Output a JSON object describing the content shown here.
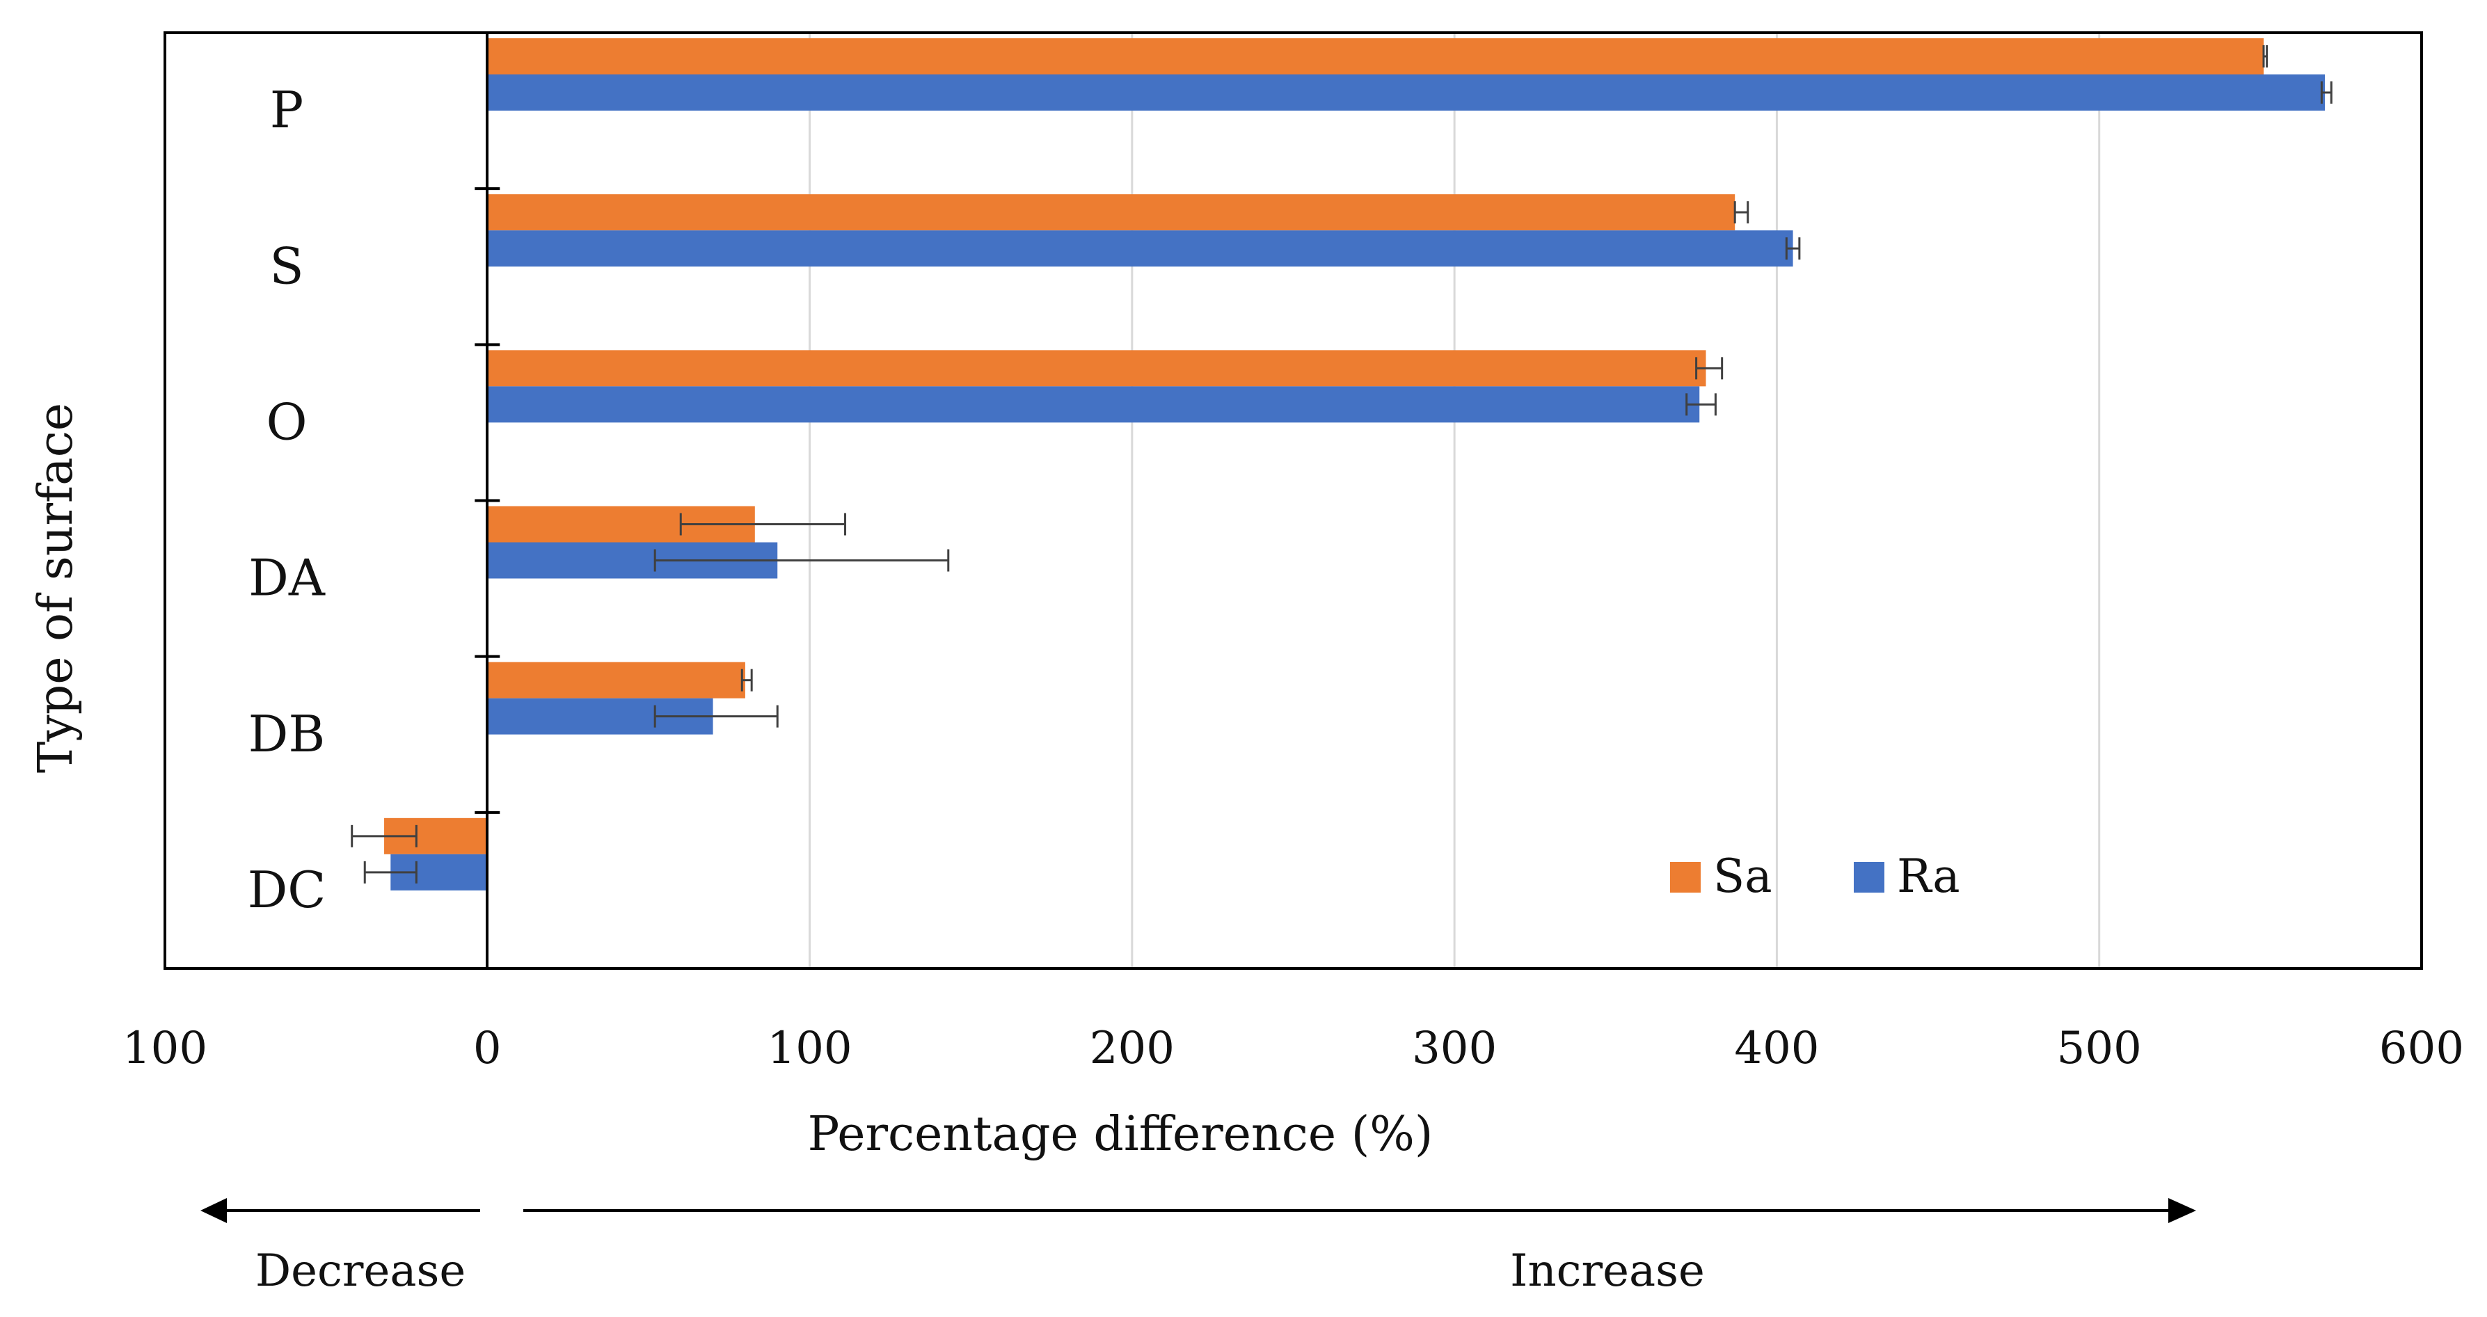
{
  "chart_data": {
    "type": "bar",
    "orientation": "horizontal",
    "title": "",
    "xlabel": "Percentage difference (%)",
    "ylabel": "Type of surface",
    "categories": [
      "P",
      "S",
      "O",
      "DA",
      "DB",
      "DC"
    ],
    "series": [
      {
        "name": "Sa",
        "color": "#ED7D31",
        "values": [
          551,
          387,
          378,
          83,
          80,
          -32
        ],
        "err_low": [
          551,
          387,
          375,
          60,
          79,
          -42
        ],
        "err_high": [
          552,
          391,
          383,
          111,
          82,
          -22
        ]
      },
      {
        "name": "Ra",
        "color": "#4472C4",
        "values": [
          570,
          405,
          376,
          90,
          70,
          -30
        ],
        "err_low": [
          569,
          403,
          372,
          52,
          52,
          -38
        ],
        "err_high": [
          572,
          407,
          381,
          143,
          90,
          -22
        ]
      }
    ],
    "xlim": [
      -100,
      600
    ],
    "xticks": [
      -100,
      0,
      100,
      200,
      300,
      400,
      500,
      600
    ],
    "xtick_labels": [
      "100",
      "0",
      "100",
      "200",
      "300",
      "400",
      "500",
      "600"
    ],
    "grid": "vertical",
    "legend": "bottom-right",
    "annotations": {
      "decrease": "Decrease",
      "increase": "Increase"
    }
  }
}
